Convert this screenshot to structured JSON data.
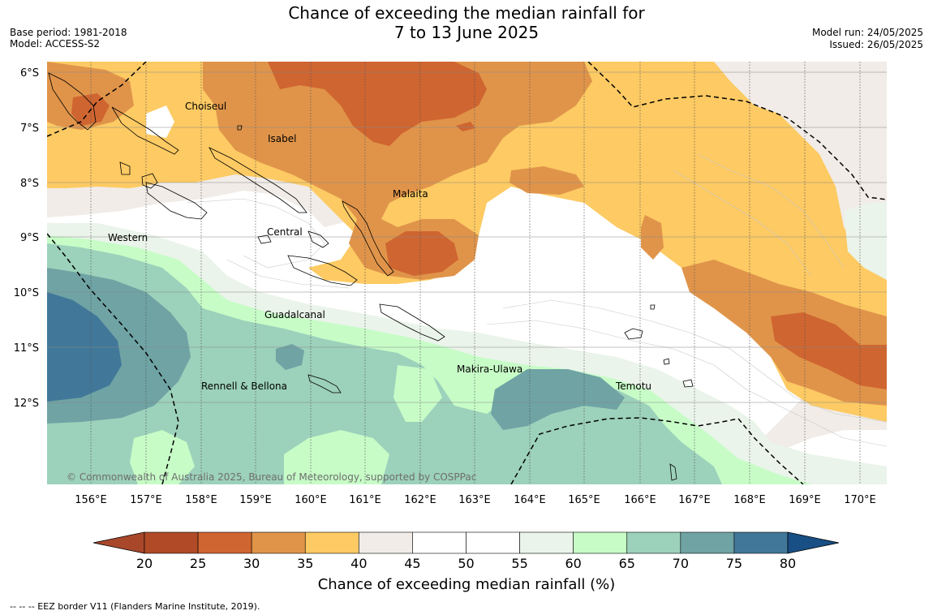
{
  "title_line1": "Chance of exceeding the median rainfall for",
  "title_line2": "7 to 13 June 2025",
  "base_period": "Base period: 1981-2018",
  "model": "Model: ACCESS-S2",
  "model_run": "Model run: 24/05/2025",
  "issued": "Issued: 26/05/2025",
  "copyright": "© Commonwealth of Australia 2025, Bureau of Meteorology, supported by COSPPac",
  "eez_note": "-- -- -- EEZ border V11 (Flanders Marine Institute, 2019).",
  "lat_labels": [
    "6°S",
    "7°S",
    "8°S",
    "9°S",
    "10°S",
    "11°S",
    "12°S"
  ],
  "lon_labels": [
    "156°E",
    "157°E",
    "158°E",
    "159°E",
    "160°E",
    "161°E",
    "162°E",
    "163°E",
    "164°E",
    "165°E",
    "166°E",
    "167°E",
    "168°E",
    "169°E",
    "170°E"
  ],
  "places": [
    {
      "name": "Choiseul"
    },
    {
      "name": "Isabel"
    },
    {
      "name": "Malaita"
    },
    {
      "name": "Central"
    },
    {
      "name": "Western"
    },
    {
      "name": "Guadalcanal"
    },
    {
      "name": "Makira-Ulawa"
    },
    {
      "name": "Rennell & Bellona"
    },
    {
      "name": "Temotu"
    }
  ],
  "colorbar": {
    "title": "Chance of exceeding median rainfall (%)",
    "ticks": [
      "20",
      "25",
      "30",
      "35",
      "40",
      "45",
      "50",
      "55",
      "60",
      "65",
      "70",
      "75",
      "80"
    ],
    "colors": [
      "#a8472a",
      "#b04a27",
      "#cf6530",
      "#e0944a",
      "#fdca63",
      "#f1ece7",
      "#ffffff",
      "#ffffff",
      "#eaf4ea",
      "#c7fcc7",
      "#9cd1bb",
      "#6fa3a4",
      "#417899",
      "#184f85"
    ]
  }
}
